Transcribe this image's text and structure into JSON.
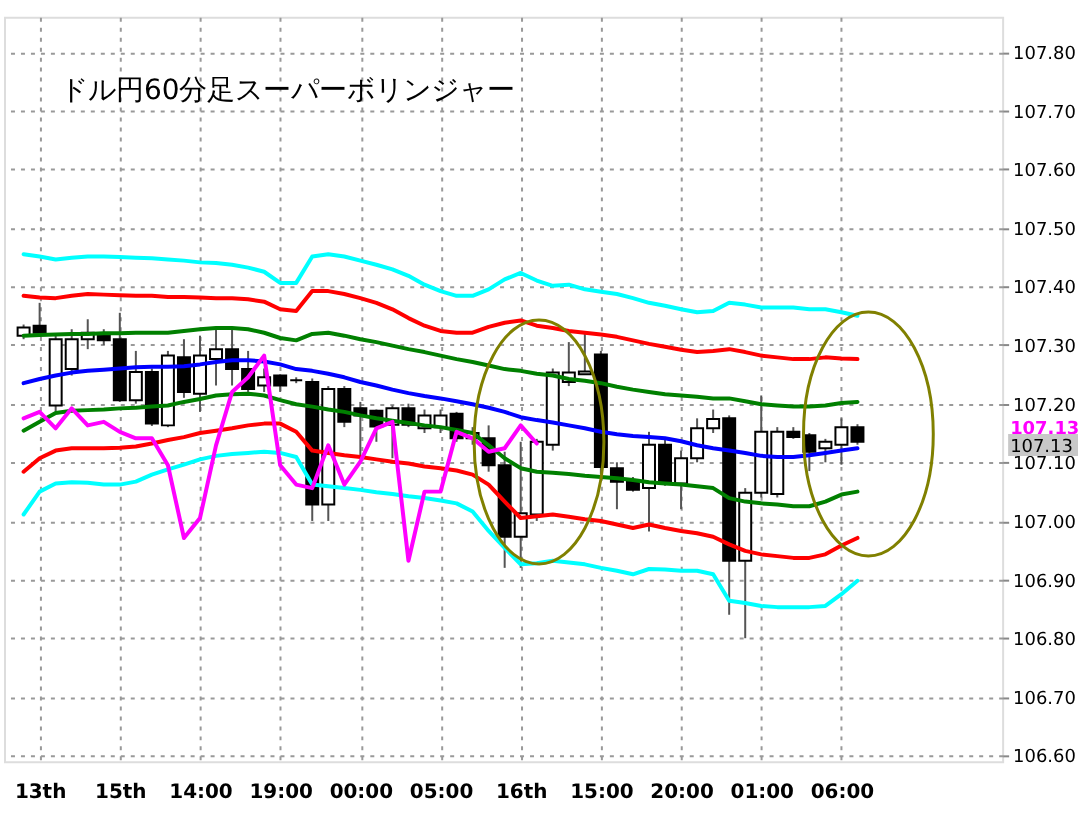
{
  "chart_data": {
    "type": "candlestick",
    "title": "ドル円60分足スーパーボリンジャー",
    "categories": [
      null,
      "13th",
      null,
      null,
      null,
      null,
      "15th",
      null,
      null,
      null,
      null,
      "14:00",
      null,
      null,
      null,
      null,
      "19:00",
      null,
      null,
      null,
      null,
      "00:00",
      null,
      null,
      null,
      null,
      "05:00",
      null,
      null,
      null,
      null,
      "16th",
      null,
      null,
      null,
      null,
      "15:00",
      null,
      null,
      null,
      null,
      "20:00",
      null,
      null,
      null,
      null,
      "01:00",
      null,
      null,
      null,
      null,
      "06:00",
      null
    ],
    "ohlc": [
      [
        107.316,
        107.335,
        107.31,
        107.33
      ],
      [
        107.333,
        107.372,
        107.315,
        107.321
      ],
      [
        107.197,
        107.316,
        107.186,
        107.31
      ],
      [
        107.259,
        107.327,
        107.248,
        107.31
      ],
      [
        107.31,
        107.344,
        107.293,
        107.321
      ],
      [
        107.319,
        107.327,
        107.3,
        107.308
      ],
      [
        107.31,
        107.355,
        107.203,
        107.206
      ],
      [
        107.206,
        107.29,
        107.2,
        107.254
      ],
      [
        107.254,
        107.26,
        107.162,
        107.166
      ],
      [
        107.163,
        107.29,
        107.16,
        107.282
      ],
      [
        107.279,
        107.31,
        107.21,
        107.22
      ],
      [
        107.217,
        107.316,
        107.186,
        107.282
      ],
      [
        107.276,
        107.327,
        107.231,
        107.293
      ],
      [
        107.293,
        107.327,
        107.231,
        107.259
      ],
      [
        107.259,
        107.29,
        107.22,
        107.225
      ],
      [
        107.231,
        107.26,
        107.22,
        107.245
      ],
      [
        107.248,
        107.25,
        107.22,
        107.231
      ],
      [
        107.24,
        107.245,
        107.235,
        107.24
      ],
      [
        107.237,
        107.243,
        107.0,
        107.028
      ],
      [
        107.028,
        107.23,
        107.0,
        107.225
      ],
      [
        107.225,
        107.23,
        107.16,
        107.169
      ],
      [
        107.192,
        107.203,
        107.107,
        107.18
      ],
      [
        107.188,
        107.19,
        107.135,
        107.161
      ],
      [
        107.164,
        107.197,
        107.107,
        107.192
      ],
      [
        107.192,
        107.2,
        107.16,
        107.164
      ],
      [
        107.158,
        107.19,
        107.15,
        107.18
      ],
      [
        107.16,
        107.19,
        107.15,
        107.18
      ],
      [
        107.183,
        107.186,
        107.135,
        107.141
      ],
      [
        107.141,
        107.16,
        107.13,
        107.15
      ],
      [
        107.141,
        107.163,
        107.084,
        107.095
      ],
      [
        107.095,
        107.118,
        106.92,
        106.973
      ],
      [
        106.973,
        107.135,
        106.92,
        107.013
      ],
      [
        107.011,
        107.14,
        107.0,
        107.135
      ],
      [
        107.13,
        107.26,
        107.12,
        107.253
      ],
      [
        107.237,
        107.305,
        107.23,
        107.253
      ],
      [
        107.25,
        107.32,
        107.25,
        107.255
      ],
      [
        107.284,
        107.29,
        107.08,
        107.092
      ],
      [
        107.09,
        107.1,
        107.02,
        107.067
      ],
      [
        107.067,
        107.075,
        107.05,
        107.053
      ],
      [
        107.056,
        107.152,
        106.982,
        107.13
      ],
      [
        107.13,
        107.14,
        107.06,
        107.064
      ],
      [
        107.064,
        107.12,
        107.02,
        107.107
      ],
      [
        107.107,
        107.175,
        107.1,
        107.158
      ],
      [
        107.158,
        107.19,
        107.15,
        107.174
      ],
      [
        107.175,
        107.18,
        106.84,
        106.932
      ],
      [
        106.932,
        107.056,
        106.8,
        107.048
      ],
      [
        107.048,
        107.214,
        107.04,
        107.152
      ],
      [
        107.046,
        107.16,
        107.04,
        107.152
      ],
      [
        107.152,
        107.16,
        107.14,
        107.143
      ],
      [
        107.146,
        107.15,
        107.085,
        107.118
      ],
      [
        107.124,
        107.14,
        107.1,
        107.135
      ],
      [
        107.13,
        107.175,
        107.096,
        107.16
      ],
      [
        107.16,
        107.165,
        107.13,
        107.135
      ]
    ],
    "series": [
      {
        "type": "line",
        "color": "#00ffff",
        "values": [
          107.455,
          107.451,
          107.446,
          107.449,
          107.451,
          107.451,
          107.45,
          107.449,
          107.448,
          107.446,
          107.444,
          107.441,
          107.44,
          107.437,
          107.432,
          107.425,
          107.406,
          107.406,
          107.451,
          107.455,
          107.451,
          107.444,
          107.437,
          107.429,
          107.418,
          107.403,
          107.392,
          107.384,
          107.384,
          107.395,
          107.412,
          107.423,
          107.41,
          107.401,
          107.403,
          107.395,
          107.391,
          107.387,
          107.38,
          107.372,
          107.367,
          107.361,
          107.356,
          107.358,
          107.372,
          107.369,
          107.364,
          107.364,
          107.364,
          107.361,
          107.361,
          107.356,
          107.35
        ]
      },
      {
        "type": "line",
        "color": "#ff0000",
        "values": [
          107.384,
          107.381,
          107.38,
          107.384,
          107.387,
          107.386,
          107.385,
          107.384,
          107.384,
          107.382,
          107.382,
          107.381,
          107.38,
          107.38,
          107.378,
          107.374,
          107.361,
          107.358,
          107.392,
          107.392,
          107.387,
          107.38,
          107.372,
          107.361,
          107.346,
          107.333,
          107.324,
          107.321,
          107.321,
          107.331,
          107.338,
          107.342,
          107.333,
          107.329,
          107.324,
          107.321,
          107.318,
          107.314,
          107.308,
          107.302,
          107.297,
          107.292,
          107.288,
          107.29,
          107.293,
          107.288,
          107.282,
          107.279,
          107.276,
          107.276,
          107.279,
          107.277,
          107.276
        ]
      },
      {
        "type": "line",
        "color": "#008000",
        "values": [
          107.316,
          107.317,
          107.318,
          107.319,
          107.319,
          107.32,
          107.32,
          107.321,
          107.321,
          107.321,
          107.324,
          107.327,
          107.329,
          107.329,
          107.327,
          107.321,
          107.312,
          107.308,
          107.319,
          107.321,
          107.316,
          107.31,
          107.305,
          107.299,
          107.293,
          107.288,
          107.282,
          107.276,
          107.271,
          107.265,
          107.259,
          107.256,
          107.251,
          107.248,
          107.242,
          107.239,
          107.235,
          107.229,
          107.224,
          107.22,
          107.216,
          107.214,
          107.212,
          107.209,
          107.209,
          107.204,
          107.199,
          107.197,
          107.195,
          107.195,
          107.197,
          107.201,
          107.203
        ]
      },
      {
        "type": "line",
        "color": "#0000ff",
        "values": [
          107.235,
          107.242,
          107.248,
          107.253,
          107.256,
          107.258,
          107.26,
          107.262,
          107.263,
          107.263,
          107.264,
          107.267,
          107.271,
          107.274,
          107.274,
          107.272,
          107.267,
          107.259,
          107.256,
          107.251,
          107.245,
          107.237,
          107.231,
          107.224,
          107.218,
          107.213,
          107.209,
          107.204,
          107.199,
          107.193,
          107.186,
          107.177,
          107.172,
          107.168,
          107.163,
          107.158,
          107.152,
          107.148,
          107.145,
          107.143,
          107.141,
          107.136,
          107.129,
          107.124,
          107.12,
          107.116,
          107.111,
          107.109,
          107.109,
          107.112,
          107.116,
          107.12,
          107.124
        ]
      },
      {
        "type": "line",
        "color": "#008000",
        "values": [
          107.154,
          107.169,
          107.184,
          107.188,
          107.189,
          107.19,
          107.192,
          107.193,
          107.195,
          107.197,
          107.203,
          107.208,
          107.214,
          107.216,
          107.217,
          107.214,
          107.206,
          107.199,
          107.195,
          107.19,
          107.186,
          107.18,
          107.175,
          107.171,
          107.167,
          107.163,
          107.16,
          107.155,
          107.15,
          107.129,
          107.107,
          107.09,
          107.084,
          107.082,
          107.08,
          107.077,
          107.075,
          107.073,
          107.07,
          107.066,
          107.064,
          107.062,
          107.059,
          107.056,
          107.039,
          107.033,
          107.03,
          107.028,
          107.025,
          107.025,
          107.033,
          107.045,
          107.05
        ]
      },
      {
        "type": "line",
        "color": "#ff0000",
        "values": [
          107.084,
          107.107,
          107.12,
          107.124,
          107.124,
          107.124,
          107.125,
          107.127,
          107.132,
          107.138,
          107.143,
          107.15,
          107.154,
          107.158,
          107.163,
          107.166,
          107.166,
          107.152,
          107.12,
          107.116,
          107.112,
          107.109,
          107.105,
          107.101,
          107.098,
          107.093,
          107.09,
          107.086,
          107.079,
          107.062,
          107.033,
          107.005,
          107.008,
          107.011,
          107.007,
          107.003,
          107.0,
          106.994,
          106.988,
          106.994,
          106.988,
          106.983,
          106.979,
          106.973,
          106.96,
          106.949,
          106.943,
          106.94,
          106.937,
          106.937,
          106.943,
          106.958,
          106.971
        ]
      },
      {
        "type": "line",
        "color": "#00ffff",
        "values": [
          107.011,
          107.05,
          107.064,
          107.066,
          107.065,
          107.062,
          107.062,
          107.067,
          107.079,
          107.088,
          107.096,
          107.105,
          107.111,
          107.114,
          107.116,
          107.118,
          107.116,
          107.109,
          107.062,
          107.059,
          107.056,
          107.053,
          107.049,
          107.046,
          107.042,
          107.039,
          107.035,
          107.03,
          107.016,
          106.983,
          106.954,
          106.926,
          106.928,
          106.932,
          106.929,
          106.926,
          106.92,
          106.915,
          106.909,
          106.918,
          106.917,
          106.915,
          106.915,
          106.909,
          106.864,
          106.86,
          106.855,
          106.853,
          106.853,
          106.853,
          106.855,
          106.875,
          106.898
        ]
      },
      {
        "type": "line",
        "color": "#ff00ff",
        "values": [
          107.175,
          107.186,
          107.158,
          107.192,
          107.163,
          107.169,
          107.152,
          107.141,
          107.141,
          107.095,
          106.971,
          107.005,
          107.129,
          107.22,
          107.245,
          107.282,
          107.095,
          107.062,
          107.056,
          107.129,
          107.062,
          107.101,
          107.158,
          107.169,
          106.932,
          107.05,
          107.05,
          107.152,
          107.141,
          107.118,
          107.124,
          107.163,
          107.132,
          null,
          null,
          null,
          null,
          null,
          null,
          null,
          null,
          null,
          null,
          null,
          null,
          null,
          null,
          null,
          null,
          null,
          null,
          null,
          null
        ]
      }
    ],
    "ylim": [
      106.59,
      107.86
    ],
    "yticks": [
      {
        "value": 106.6,
        "label": "106.60"
      },
      {
        "value": 106.7,
        "label": "106.70"
      },
      {
        "value": 106.8,
        "label": "106.80"
      },
      {
        "value": 106.9,
        "label": "106.90"
      },
      {
        "value": 107.0,
        "label": "107.00"
      },
      {
        "value": 107.1,
        "label": "107.10"
      },
      {
        "value": 107.2,
        "label": "107.20"
      },
      {
        "value": 107.3,
        "label": "107.30"
      },
      {
        "value": 107.4,
        "label": "107.40"
      },
      {
        "value": 107.5,
        "label": "107.50"
      },
      {
        "value": 107.6,
        "label": "107.60"
      },
      {
        "value": 107.7,
        "label": "107.70"
      },
      {
        "value": 107.8,
        "label": "107.80"
      }
    ],
    "annotations": [
      "107.13",
      "107.13"
    ],
    "grid": true
  }
}
